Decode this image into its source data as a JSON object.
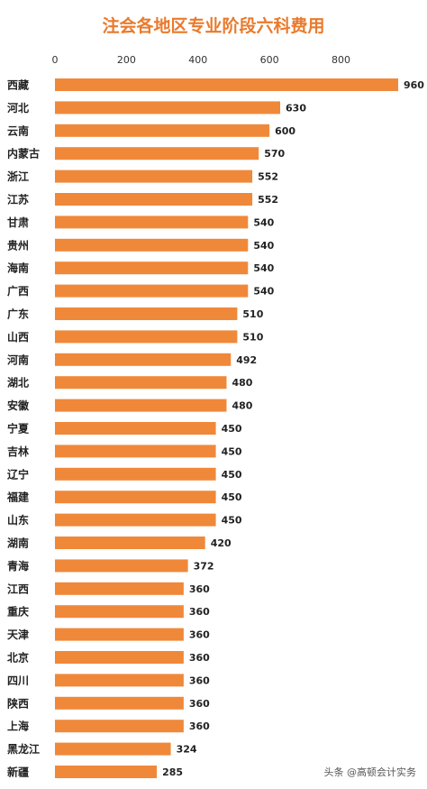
{
  "colors": {
    "bar": "#F0883A",
    "title": "#E97A2C",
    "background": "#FFFFFF",
    "label": "#222222"
  },
  "watermark": "头条 @高顿会计实务",
  "chart_data": {
    "type": "bar",
    "orientation": "horizontal",
    "title": "注会各地区专业阶段六科费用",
    "xlabel": "",
    "ylabel": "",
    "xlim": [
      0,
      960
    ],
    "x_ticks": [
      "0",
      "200",
      "400",
      "600",
      "800"
    ],
    "x_tick_values": [
      0,
      200,
      400,
      600,
      800
    ],
    "axis_position": "top",
    "grid": false,
    "legend": "none",
    "categories": [
      "西藏",
      "河北",
      "云南",
      "内蒙古",
      "浙江",
      "江苏",
      "甘肃",
      "贵州",
      "海南",
      "广西",
      "广东",
      "山西",
      "河南",
      "湖北",
      "安徽",
      "宁夏",
      "吉林",
      "辽宁",
      "福建",
      "山东",
      "湖南",
      "青海",
      "江西",
      "重庆",
      "天津",
      "北京",
      "四川",
      "陕西",
      "上海",
      "黑龙江",
      "新疆"
    ],
    "values": [
      960,
      630,
      600,
      570,
      552,
      552,
      540,
      540,
      540,
      540,
      510,
      510,
      492,
      480,
      480,
      450,
      450,
      450,
      450,
      450,
      420,
      372,
      360,
      360,
      360,
      360,
      360,
      360,
      360,
      324,
      285
    ],
    "value_labels": [
      "960",
      "630",
      "600",
      "570",
      "552",
      "552",
      "540",
      "540",
      "540",
      "540",
      "510",
      "510",
      "492",
      "480",
      "480",
      "450",
      "450",
      "450",
      "450",
      "450",
      "420",
      "372",
      "360",
      "360",
      "360",
      "360",
      "360",
      "360",
      "360",
      "324",
      "285"
    ]
  }
}
